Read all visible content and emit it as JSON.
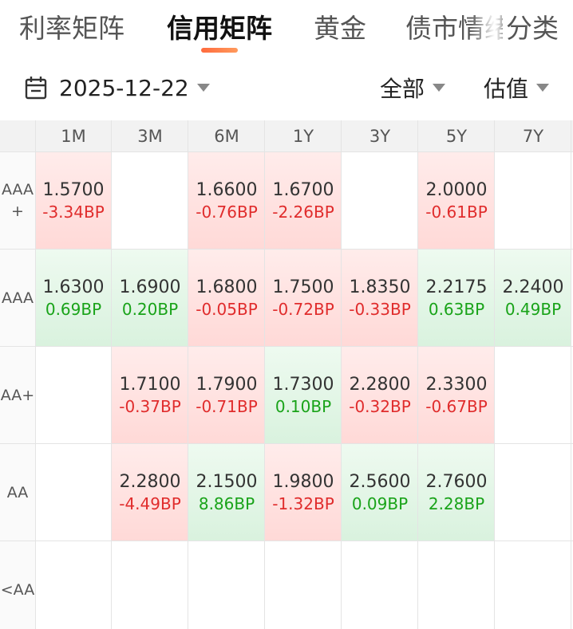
{
  "tabs": [
    {
      "label": "利率矩阵",
      "active": false
    },
    {
      "label": "信用矩阵",
      "active": true
    },
    {
      "label": "黄金",
      "active": false
    },
    {
      "label": "债市情绪",
      "active": false
    },
    {
      "label": "分类",
      "active": false
    }
  ],
  "filters": {
    "date": "2025-12-22",
    "scope": "全部",
    "metric": "估值"
  },
  "colors": {
    "accent": "#ff6a3d",
    "up": "#e02c2c",
    "down": "#19a319"
  },
  "matrix": {
    "columns": [
      "1M",
      "3M",
      "6M",
      "1Y",
      "3Y",
      "5Y",
      "7Y"
    ],
    "rows": [
      {
        "rating": "AAA+",
        "rating_lines": [
          "AAA",
          "+"
        ],
        "cells": [
          {
            "value": "1.5700",
            "change": "-3.34BP",
            "trend": "up"
          },
          null,
          {
            "value": "1.6600",
            "change": "-0.76BP",
            "trend": "up"
          },
          {
            "value": "1.6700",
            "change": "-2.26BP",
            "trend": "up"
          },
          null,
          {
            "value": "2.0000",
            "change": "-0.61BP",
            "trend": "up"
          },
          null
        ]
      },
      {
        "rating": "AAA",
        "rating_lines": [
          "AAA"
        ],
        "cells": [
          {
            "value": "1.6300",
            "change": "0.69BP",
            "trend": "down"
          },
          {
            "value": "1.6900",
            "change": "0.20BP",
            "trend": "down"
          },
          {
            "value": "1.6800",
            "change": "-0.05BP",
            "trend": "up"
          },
          {
            "value": "1.7500",
            "change": "-0.72BP",
            "trend": "up"
          },
          {
            "value": "1.8350",
            "change": "-0.33BP",
            "trend": "up"
          },
          {
            "value": "2.2175",
            "change": "0.63BP",
            "trend": "down"
          },
          {
            "value": "2.2400",
            "change": "0.49BP",
            "trend": "down"
          }
        ]
      },
      {
        "rating": "AA+",
        "rating_lines": [
          "AA+"
        ],
        "cells": [
          null,
          {
            "value": "1.7100",
            "change": "-0.37BP",
            "trend": "up"
          },
          {
            "value": "1.7900",
            "change": "-0.71BP",
            "trend": "up"
          },
          {
            "value": "1.7300",
            "change": "0.10BP",
            "trend": "down"
          },
          {
            "value": "2.2800",
            "change": "-0.32BP",
            "trend": "up"
          },
          {
            "value": "2.3300",
            "change": "-0.67BP",
            "trend": "up"
          },
          null
        ]
      },
      {
        "rating": "AA",
        "rating_lines": [
          "AA"
        ],
        "cells": [
          null,
          {
            "value": "2.2800",
            "change": "-4.49BP",
            "trend": "up"
          },
          {
            "value": "2.1500",
            "change": "8.86BP",
            "trend": "down"
          },
          {
            "value": "1.9800",
            "change": "-1.32BP",
            "trend": "up"
          },
          {
            "value": "2.5600",
            "change": "0.09BP",
            "trend": "down"
          },
          {
            "value": "2.7600",
            "change": "2.28BP",
            "trend": "down"
          },
          null
        ]
      },
      {
        "rating": "<AA",
        "rating_lines": [
          "<AA"
        ],
        "cells": [
          null,
          null,
          null,
          null,
          null,
          null,
          null
        ]
      }
    ]
  }
}
